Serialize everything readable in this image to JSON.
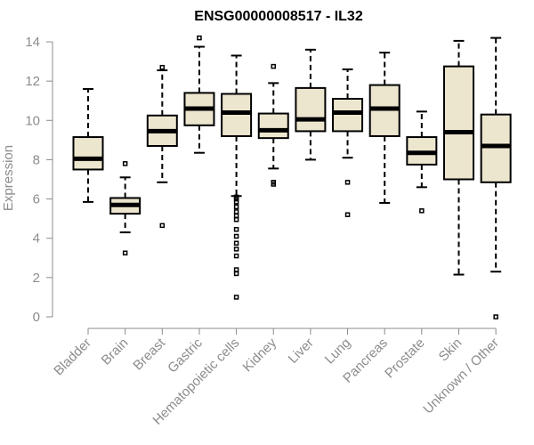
{
  "chart_data": {
    "type": "box",
    "title": "ENSG00000008517 - IL32",
    "xlabel": "",
    "ylabel": "Expression",
    "ylim": [
      0,
      14
    ],
    "yticks": [
      0,
      2,
      4,
      6,
      8,
      10,
      12,
      14
    ],
    "grid": false,
    "colors": {
      "box_fill": "#ede6cf",
      "box_stroke": "#000000",
      "axis": "#8c8c8c"
    },
    "categories": [
      "Bladder",
      "Brain",
      "Breast",
      "Gastric",
      "Hematopoietic cells",
      "Kidney",
      "Liver",
      "Lung",
      "Pancreas",
      "Prostate",
      "Skin",
      "Unknown / Other"
    ],
    "boxes": [
      {
        "lower_whisker": 5.85,
        "q1": 7.5,
        "median": 8.05,
        "q3": 9.15,
        "upper_whisker": 11.6,
        "outliers": []
      },
      {
        "lower_whisker": 4.3,
        "q1": 5.25,
        "median": 5.7,
        "q3": 6.05,
        "upper_whisker": 7.1,
        "outliers": [
          3.25,
          7.8
        ]
      },
      {
        "lower_whisker": 6.85,
        "q1": 8.7,
        "median": 9.45,
        "q3": 10.25,
        "upper_whisker": 12.55,
        "outliers": [
          4.65,
          12.7
        ]
      },
      {
        "lower_whisker": 8.35,
        "q1": 9.75,
        "median": 10.6,
        "q3": 11.4,
        "upper_whisker": 13.75,
        "outliers": [
          14.2
        ]
      },
      {
        "lower_whisker": 6.15,
        "q1": 9.2,
        "median": 10.4,
        "q3": 11.35,
        "upper_whisker": 13.3,
        "outliers": [
          1.0,
          2.2,
          2.4,
          3.1,
          3.45,
          3.75,
          4.1,
          4.45,
          4.95,
          5.15,
          5.35,
          5.6,
          5.85,
          6.0,
          6.1
        ]
      },
      {
        "lower_whisker": 7.55,
        "q1": 9.1,
        "median": 9.5,
        "q3": 10.35,
        "upper_whisker": 11.9,
        "outliers": [
          6.75,
          6.85,
          12.75
        ]
      },
      {
        "lower_whisker": 8.0,
        "q1": 9.45,
        "median": 10.05,
        "q3": 11.65,
        "upper_whisker": 13.6,
        "outliers": []
      },
      {
        "lower_whisker": 8.1,
        "q1": 9.45,
        "median": 10.4,
        "q3": 11.1,
        "upper_whisker": 12.6,
        "outliers": [
          5.2,
          6.85
        ]
      },
      {
        "lower_whisker": 5.8,
        "q1": 9.2,
        "median": 10.6,
        "q3": 11.8,
        "upper_whisker": 13.45,
        "outliers": []
      },
      {
        "lower_whisker": 6.6,
        "q1": 7.75,
        "median": 8.35,
        "q3": 9.15,
        "upper_whisker": 10.45,
        "outliers": [
          5.4
        ]
      },
      {
        "lower_whisker": 2.15,
        "q1": 7.0,
        "median": 9.4,
        "q3": 12.75,
        "upper_whisker": 14.05,
        "outliers": []
      },
      {
        "lower_whisker": 2.3,
        "q1": 6.85,
        "median": 8.7,
        "q3": 10.3,
        "upper_whisker": 14.2,
        "outliers": [
          0.0
        ]
      }
    ]
  }
}
